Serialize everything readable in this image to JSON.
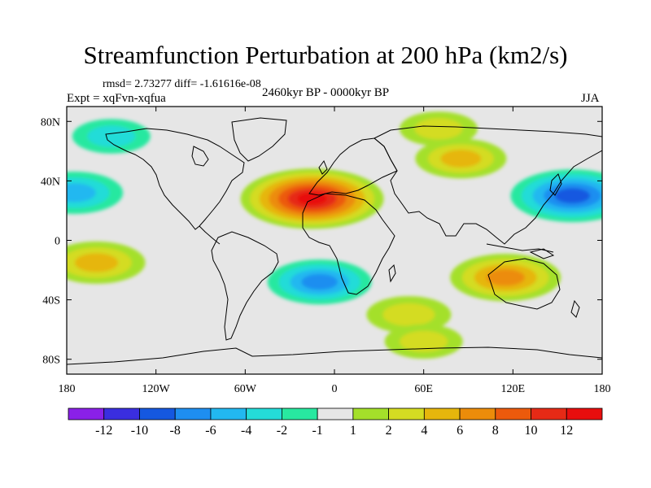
{
  "chart_data": {
    "type": "heatmap",
    "title": "Streamfunction Perturbation at 200 hPa (km2/s)",
    "stats": {
      "rmsd": "2.73277",
      "diff": "-1.61616e-08",
      "text": "rmsd= 2.73277 diff= -1.61616e-08"
    },
    "experiment": "Expt = xqFvn-xqfua",
    "period": "2460kyr BP - 0000kyr BP",
    "season": "JJA",
    "x_ticks": [
      "180",
      "120W",
      "60W",
      "0",
      "60E",
      "120E",
      "180"
    ],
    "x_tick_values": [
      -180,
      -120,
      -60,
      0,
      60,
      120,
      180
    ],
    "y_ticks": [
      "80N",
      "40N",
      "0",
      "40S",
      "80S"
    ],
    "y_tick_values": [
      80,
      40,
      0,
      -40,
      -80
    ],
    "xlim": [
      -180,
      180
    ],
    "ylim": [
      -90,
      90
    ],
    "colorbar": {
      "labels": [
        "-12",
        "-10",
        "-8",
        "-6",
        "-4",
        "-2",
        "-1",
        "1",
        "2",
        "4",
        "6",
        "8",
        "10",
        "12"
      ],
      "levels": [
        -12,
        -10,
        -8,
        -6,
        -4,
        -2,
        -1,
        1,
        2,
        4,
        6,
        8,
        10,
        12
      ],
      "colors": [
        "#8a20e8",
        "#3a2ee0",
        "#1558e0",
        "#1e8ef0",
        "#22b8f0",
        "#24dcd8",
        "#28e8a0",
        "#e6e6e6",
        "#a4e02a",
        "#d4dc22",
        "#e6b60c",
        "#ec8c0a",
        "#ec5a0c",
        "#e62a16",
        "#e80e0e"
      ]
    },
    "anomalies": [
      {
        "region": "subtropical North Atlantic / North Africa",
        "lon": -15,
        "lat": 28,
        "value": 12,
        "sign": "positive"
      },
      {
        "region": "North Pacific (west)",
        "lon": 160,
        "lat": 30,
        "value": -9,
        "sign": "negative"
      },
      {
        "region": "North Pacific (east)",
        "lon": -175,
        "lat": 32,
        "value": -5,
        "sign": "negative"
      },
      {
        "region": "tropical South Atlantic",
        "lon": -10,
        "lat": -28,
        "value": -6,
        "sign": "negative"
      },
      {
        "region": "Australia",
        "lon": 115,
        "lat": -25,
        "value": 7,
        "sign": "positive"
      },
      {
        "region": "South Pacific",
        "lon": -160,
        "lat": -15,
        "value": 5,
        "sign": "positive"
      },
      {
        "region": "North Pacific high latitude",
        "lon": -150,
        "lat": 70,
        "value": -2,
        "sign": "negative"
      },
      {
        "region": "Siberia",
        "lon": 70,
        "lat": 75,
        "value": 2,
        "sign": "positive"
      },
      {
        "region": "East Asia",
        "lon": 85,
        "lat": 55,
        "value": 4,
        "sign": "positive"
      },
      {
        "region": "Southern Indian Ocean",
        "lon": 50,
        "lat": -50,
        "value": 3,
        "sign": "positive"
      },
      {
        "region": "Southern Ocean south of Africa",
        "lon": 60,
        "lat": -68,
        "value": 2,
        "sign": "positive"
      }
    ]
  }
}
